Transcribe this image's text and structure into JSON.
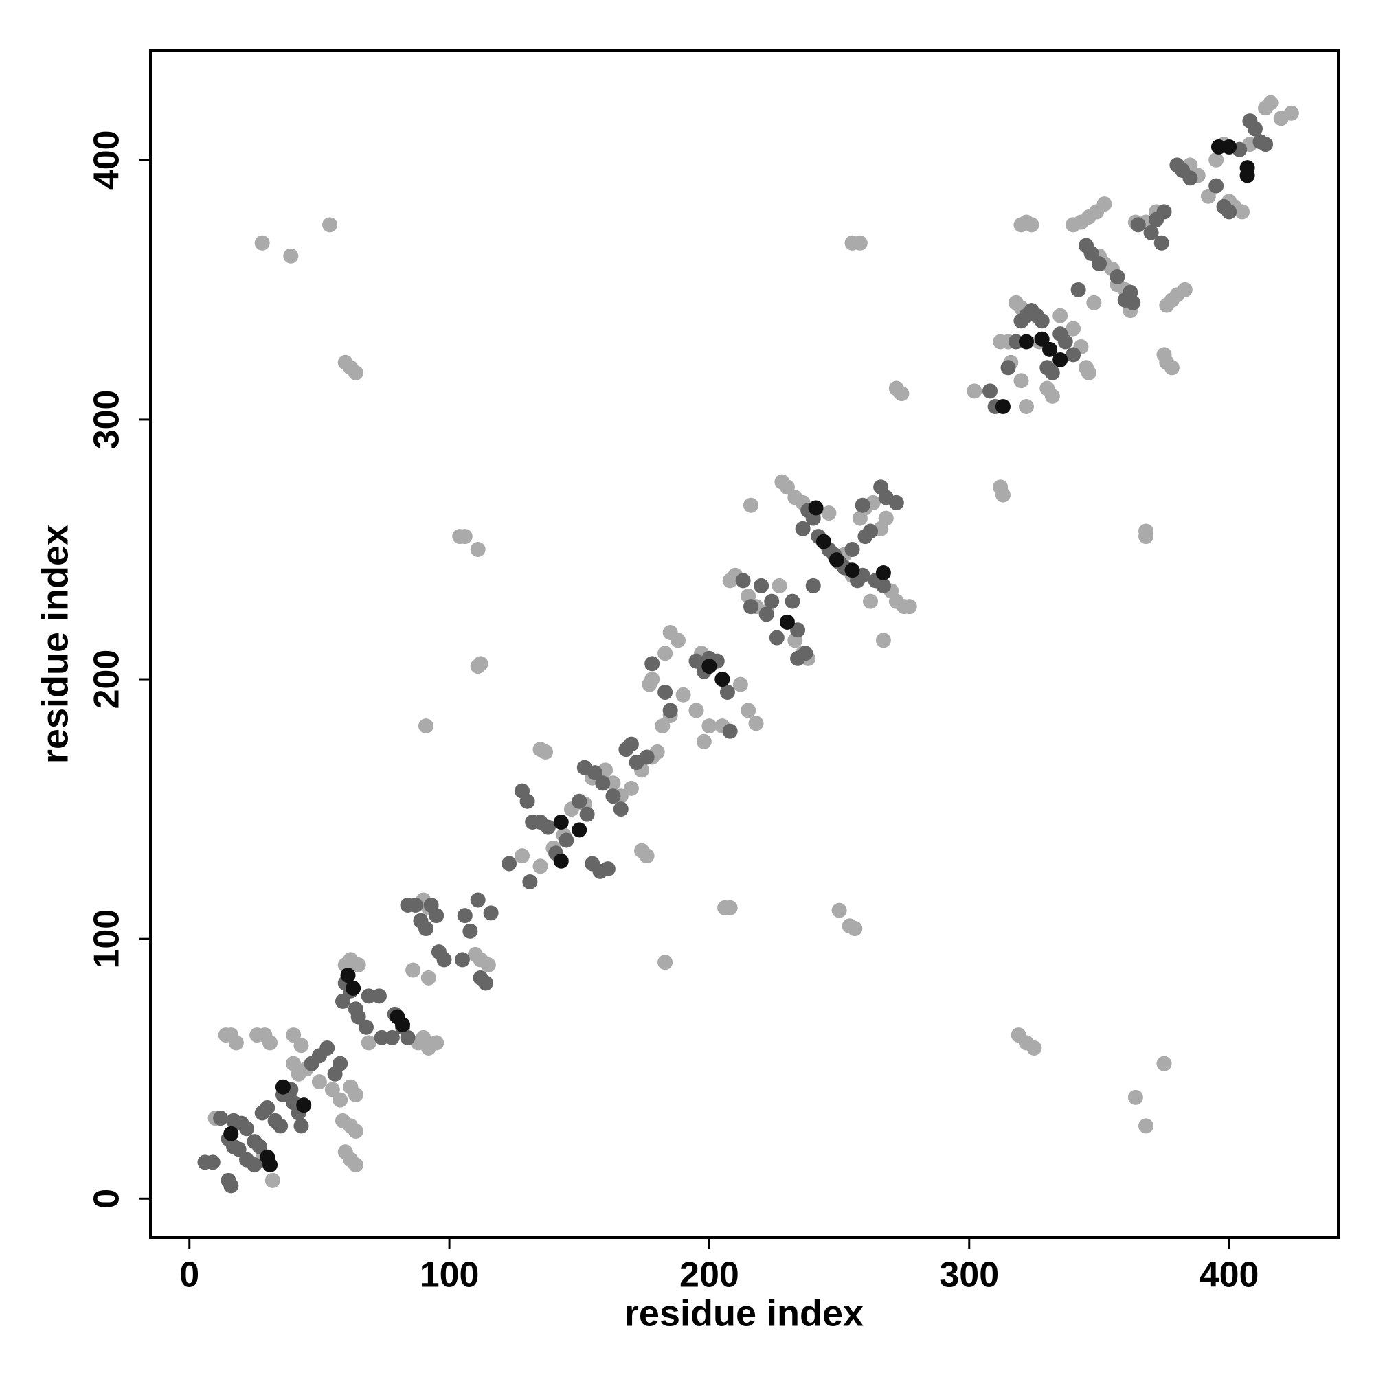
{
  "chart_data": {
    "type": "scatter",
    "x_label": "residue index",
    "y_label": "residue index",
    "xlim": [
      -15,
      442
    ],
    "ylim": [
      -15,
      442
    ],
    "xticks": [
      0,
      100,
      200,
      300,
      400
    ],
    "yticks": [
      0,
      100,
      200,
      300,
      400
    ],
    "grid": false,
    "series": [
      {
        "color": "#aaaaaa",
        "x": [
          28,
          39,
          54,
          60,
          62,
          64,
          104,
          106,
          111,
          112,
          111,
          91,
          135,
          137,
          174,
          176,
          183,
          206,
          208,
          250,
          254,
          256,
          255,
          258,
          272,
          274,
          312,
          313,
          368,
          368,
          319,
          322,
          325,
          364,
          368,
          375,
          376,
          378,
          375,
          10,
          14,
          16,
          18,
          26,
          29,
          31,
          40,
          43,
          40,
          42,
          45,
          50,
          55,
          58,
          62,
          64,
          59,
          62,
          64,
          60,
          62,
          64,
          60,
          62,
          65,
          69,
          88,
          90,
          92,
          95,
          86,
          92,
          90,
          92,
          110,
          112,
          115,
          32,
          28,
          128,
          135,
          140,
          144,
          147,
          152,
          155,
          160,
          163,
          166,
          170,
          174,
          178,
          180,
          182,
          185,
          177,
          178,
          183,
          185,
          188,
          190,
          195,
          198,
          200,
          205,
          197,
          212,
          215,
          218,
          216,
          208,
          210,
          215,
          218,
          222,
          227,
          228,
          230,
          233,
          236,
          240,
          233,
          236,
          238,
          246,
          250,
          252,
          255,
          258,
          260,
          263,
          266,
          268,
          270,
          272,
          275,
          277,
          267,
          262,
          252,
          302,
          312,
          315,
          316,
          320,
          322,
          320,
          322,
          324,
          318,
          320,
          322,
          327,
          330,
          332,
          335,
          340,
          343,
          345,
          346,
          340,
          343,
          346,
          349,
          352,
          348,
          350,
          352,
          355,
          357,
          360,
          362,
          364,
          368,
          372,
          376,
          378,
          380,
          383,
          385,
          388,
          392,
          395,
          398,
          400,
          402,
          405,
          410,
          414,
          416,
          420,
          424,
          408
        ],
        "y": [
          368,
          363,
          375,
          322,
          320,
          318,
          255,
          255,
          250,
          206,
          205,
          182,
          173,
          172,
          134,
          132,
          91,
          112,
          112,
          111,
          105,
          104,
          368,
          368,
          312,
          310,
          274,
          271,
          255,
          257,
          63,
          60,
          58,
          39,
          28,
          52,
          322,
          320,
          325,
          31,
          63,
          63,
          60,
          63,
          63,
          60,
          63,
          59,
          52,
          48,
          50,
          45,
          42,
          38,
          43,
          40,
          30,
          28,
          26,
          18,
          15,
          13,
          90,
          92,
          90,
          60,
          60,
          62,
          58,
          60,
          88,
          85,
          115,
          112,
          94,
          92,
          90,
          7,
          15,
          132,
          128,
          135,
          140,
          150,
          152,
          162,
          165,
          160,
          155,
          158,
          165,
          170,
          172,
          182,
          186,
          198,
          200,
          210,
          218,
          215,
          194,
          188,
          176,
          182,
          182,
          210,
          198,
          188,
          183,
          267,
          238,
          240,
          232,
          228,
          226,
          236,
          276,
          274,
          270,
          268,
          263,
          215,
          210,
          208,
          264,
          246,
          243,
          240,
          262,
          266,
          268,
          258,
          262,
          234,
          230,
          228,
          228,
          215,
          230,
          248,
          311,
          330,
          330,
          322,
          315,
          305,
          375,
          376,
          375,
          345,
          343,
          340,
          330,
          312,
          309,
          340,
          335,
          328,
          320,
          318,
          375,
          376,
          378,
          380,
          383,
          345,
          363,
          360,
          358,
          352,
          350,
          342,
          376,
          376,
          380,
          344,
          346,
          348,
          350,
          398,
          394,
          386,
          400,
          406,
          384,
          382,
          380,
          412,
          420,
          422,
          416,
          418,
          406
        ]
      },
      {
        "color": "#666666",
        "x": [
          6,
          9,
          15,
          16,
          12,
          15,
          17,
          20,
          22,
          25,
          17,
          19,
          22,
          25,
          27,
          28,
          30,
          33,
          35,
          36,
          39,
          40,
          42,
          43,
          47,
          50,
          53,
          56,
          58,
          59,
          60,
          62,
          64,
          65,
          68,
          69,
          73,
          74,
          78,
          79,
          82,
          84,
          84,
          87,
          89,
          91,
          93,
          95,
          96,
          98,
          105,
          106,
          111,
          108,
          112,
          114,
          116,
          123,
          128,
          130,
          131,
          132,
          135,
          138,
          141,
          145,
          150,
          153,
          152,
          156,
          159,
          155,
          158,
          161,
          163,
          166,
          168,
          170,
          172,
          176,
          183,
          185,
          178,
          195,
          198,
          200,
          203,
          205,
          207,
          208,
          213,
          216,
          220,
          222,
          224,
          226,
          230,
          232,
          234,
          234,
          237,
          236,
          238,
          240,
          240,
          242,
          244,
          246,
          248,
          250,
          252,
          255,
          257,
          259,
          259,
          260,
          262,
          266,
          268,
          272,
          267,
          264,
          308,
          310,
          315,
          318,
          320,
          322,
          324,
          326,
          328,
          330,
          332,
          335,
          337,
          340,
          342,
          345,
          347,
          350,
          357,
          360,
          362,
          363,
          365,
          370,
          372,
          374,
          375,
          380,
          382,
          385,
          395,
          398,
          400,
          404,
          408,
          410,
          412,
          414
        ],
        "y": [
          14,
          14,
          7,
          5,
          31,
          23,
          30,
          29,
          27,
          22,
          20,
          19,
          15,
          13,
          20,
          33,
          35,
          30,
          28,
          40,
          42,
          37,
          33,
          28,
          52,
          55,
          58,
          48,
          52,
          76,
          83,
          80,
          73,
          70,
          66,
          78,
          78,
          62,
          62,
          71,
          66,
          62,
          113,
          113,
          107,
          104,
          113,
          109,
          95,
          92,
          92,
          109,
          115,
          103,
          85,
          83,
          110,
          129,
          157,
          153,
          122,
          145,
          145,
          143,
          133,
          138,
          153,
          148,
          166,
          164,
          160,
          129,
          126,
          127,
          155,
          150,
          173,
          175,
          168,
          170,
          195,
          188,
          206,
          207,
          203,
          208,
          207,
          200,
          195,
          180,
          238,
          228,
          236,
          225,
          230,
          216,
          222,
          230,
          219,
          208,
          210,
          258,
          265,
          262,
          236,
          255,
          253,
          250,
          248,
          245,
          243,
          250,
          238,
          240,
          267,
          255,
          257,
          274,
          270,
          268,
          236,
          238,
          311,
          305,
          320,
          330,
          338,
          340,
          342,
          340,
          338,
          320,
          318,
          333,
          330,
          325,
          350,
          367,
          364,
          360,
          355,
          346,
          349,
          345,
          375,
          372,
          377,
          368,
          380,
          398,
          396,
          393,
          390,
          382,
          380,
          404,
          415,
          412,
          407,
          406
        ]
      },
      {
        "color": "#111111",
        "x": [
          16,
          31,
          36,
          30,
          44,
          61,
          63,
          82,
          80,
          143,
          150,
          143,
          200,
          205,
          230,
          241,
          244,
          249,
          255,
          267,
          322,
          335,
          313,
          396,
          400,
          407,
          407,
          328,
          331
        ],
        "y": [
          25,
          13,
          43,
          16,
          36,
          86,
          81,
          67,
          70,
          145,
          142,
          130,
          205,
          200,
          222,
          266,
          253,
          246,
          242,
          241,
          330,
          323,
          305,
          405,
          405,
          397,
          394,
          331,
          327
        ]
      }
    ]
  }
}
